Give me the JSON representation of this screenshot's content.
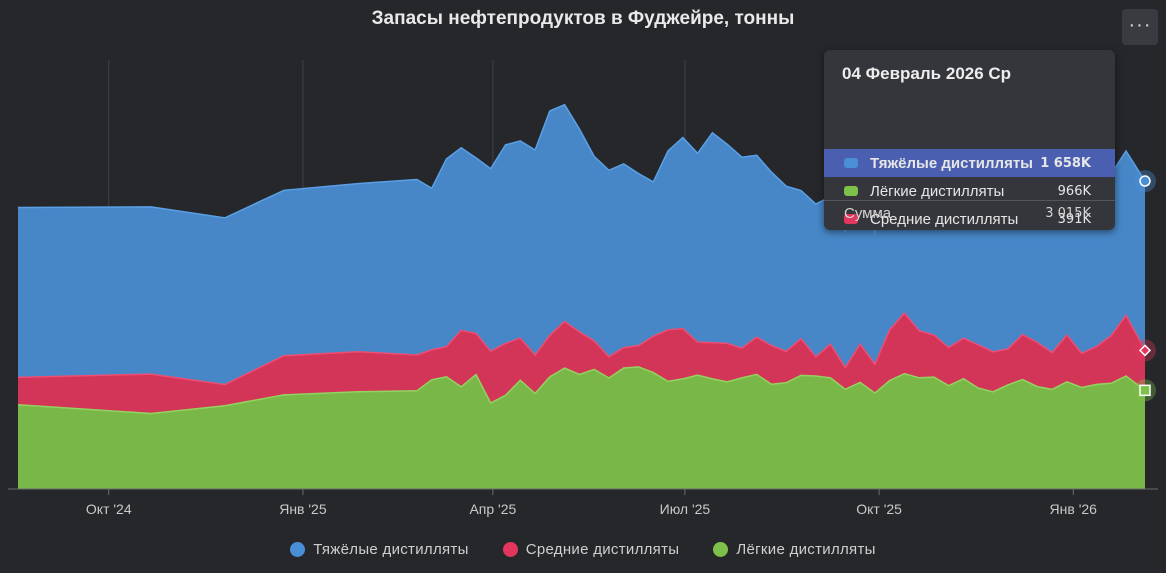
{
  "title": "Запасы нефтепродуктов в Фуджейре, тонны",
  "menu_label": "···",
  "colors": {
    "heavy": "#4a8fd6",
    "middle": "#e2365c",
    "light": "#7dc04a",
    "background": "#26272b"
  },
  "chart_data": {
    "type": "area",
    "stacked": true,
    "title": "Запасы нефтепродуктов в Фуджейре, тонны",
    "x_ticks": [
      "Окт '24",
      "Янв '25",
      "Апр '25",
      "Июл '25",
      "Окт '25",
      "Янв '26"
    ],
    "x_tick_dates": [
      "2024-10-01",
      "2025-01-01",
      "2025-04-01",
      "2025-07-01",
      "2025-10-01",
      "2026-01-01"
    ],
    "ylim": [
      0,
      4200
    ],
    "grid": "vertical",
    "legend_position": "bottom-center",
    "x": [
      "2024-08-19",
      "2024-10-21",
      "2024-11-25",
      "2024-12-23",
      "2025-01-27",
      "2025-02-24",
      "2025-03-03",
      "2025-03-10",
      "2025-03-17",
      "2025-03-24",
      "2025-03-31",
      "2025-04-07",
      "2025-04-14",
      "2025-04-21",
      "2025-04-28",
      "2025-05-05",
      "2025-05-12",
      "2025-05-19",
      "2025-05-26",
      "2025-06-02",
      "2025-06-09",
      "2025-06-16",
      "2025-06-23",
      "2025-06-30",
      "2025-07-07",
      "2025-07-14",
      "2025-07-21",
      "2025-07-28",
      "2025-08-04",
      "2025-08-11",
      "2025-08-18",
      "2025-08-25",
      "2025-09-01",
      "2025-09-08",
      "2025-09-15",
      "2025-09-22",
      "2025-09-29",
      "2025-10-06",
      "2025-10-13",
      "2025-10-20",
      "2025-10-27",
      "2025-11-03",
      "2025-11-10",
      "2025-11-17",
      "2025-11-24",
      "2025-12-01",
      "2025-12-08",
      "2025-12-15",
      "2025-12-22",
      "2025-12-29",
      "2026-01-05",
      "2026-01-12",
      "2026-01-19",
      "2026-01-26",
      "2026-02-04"
    ],
    "series": [
      {
        "name": "Тяжёлые дистилляты",
        "key": "heavy",
        "values": [
          1663,
          1637,
          1632,
          1619,
          1646,
          1718,
          1582,
          1838,
          1787,
          1720,
          1788,
          1944,
          1931,
          2008,
          2197,
          2122,
          1986,
          1807,
          1826,
          1799,
          1685,
          1512,
          1750,
          1870,
          1849,
          2055,
          1951,
          1870,
          1781,
          1699,
          1617,
          1451,
          1495,
          1446,
          1330,
          1510,
          1281,
          1658,
          1617,
          1621,
          1644,
          1553,
          1616,
          1632,
          1636,
          1656,
          1605,
          1568,
          1668,
          1655,
          1674,
          1626,
          1583,
          1608,
          1658
        ]
      },
      {
        "name": "Средние дистилляты",
        "key": "middle",
        "values": [
          268,
          386,
          206,
          384,
          391,
          351,
          293,
          295,
          552,
          403,
          506,
          508,
          413,
          376,
          406,
          456,
          417,
          278,
          207,
          199,
          209,
          355,
          506,
          492,
          323,
          354,
          376,
          290,
          364,
          379,
          306,
          359,
          188,
          328,
          213,
          374,
          283,
          496,
          593,
          459,
          412,
          373,
          396,
          423,
          391,
          352,
          441,
          430,
          360,
          458,
          335,
          370,
          466,
          595,
          391
        ]
      },
      {
        "name": "Лёгкие дистилляты",
        "key": "light",
        "values": [
          825,
          739,
          816,
          921,
          953,
          961,
          1069,
          1098,
          1001,
          1120,
          842,
          917,
          1064,
          935,
          1098,
          1184,
          1121,
          1171,
          1087,
          1185,
          1195,
          1140,
          1053,
          1078,
          1115,
          1078,
          1049,
          1088,
          1122,
          1025,
          1041,
          1112,
          1106,
          1089,
          976,
          1044,
          939,
          1061,
          1129,
          1089,
          1096,
          1011,
          1080,
          988,
          952,
          1019,
          1071,
          1003,
          975,
          1050,
          994,
          1024,
          1035,
          1106,
          966
        ]
      }
    ],
    "tooltip": {
      "date": "04 Февраль 2026 Ср",
      "rows": [
        {
          "name": "Тяжёлые дистилляты",
          "value": "1 658K",
          "key": "heavy",
          "active": true
        },
        {
          "name": "Лёгкие дистилляты",
          "value": "966K",
          "key": "light",
          "active": false
        },
        {
          "name": "Средние дистилляты",
          "value": "391K",
          "key": "middle",
          "active": false
        }
      ],
      "sum_label": "Сумма",
      "sum_value": "3 015K"
    },
    "legend": [
      {
        "name": "Тяжёлые дистилляты",
        "key": "heavy"
      },
      {
        "name": "Средние дистилляты",
        "key": "middle"
      },
      {
        "name": "Лёгкие дистилляты",
        "key": "light"
      }
    ]
  }
}
